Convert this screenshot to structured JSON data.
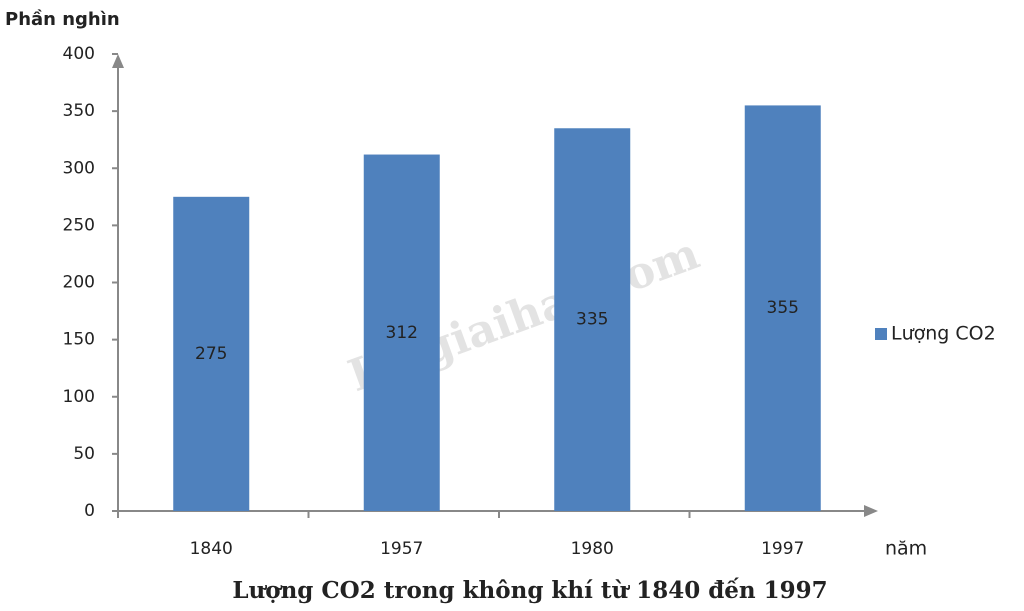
{
  "chart_data": {
    "type": "bar",
    "title": "Lượng CO2 trong không khí từ 1840 đến 1997",
    "y_label": "Phần nghìn",
    "x_label": "năm",
    "watermark": "Loigiaihay.com",
    "categories": [
      "1840",
      "1957",
      "1980",
      "1997"
    ],
    "series": [
      {
        "name": "Lượng CO2",
        "color": "#4f81bd",
        "values": [
          275,
          312,
          335,
          355
        ]
      }
    ],
    "ylim": [
      0,
      400
    ],
    "yticks": [
      0,
      50,
      100,
      150,
      200,
      250,
      300,
      350,
      400
    ],
    "legend": "right"
  }
}
